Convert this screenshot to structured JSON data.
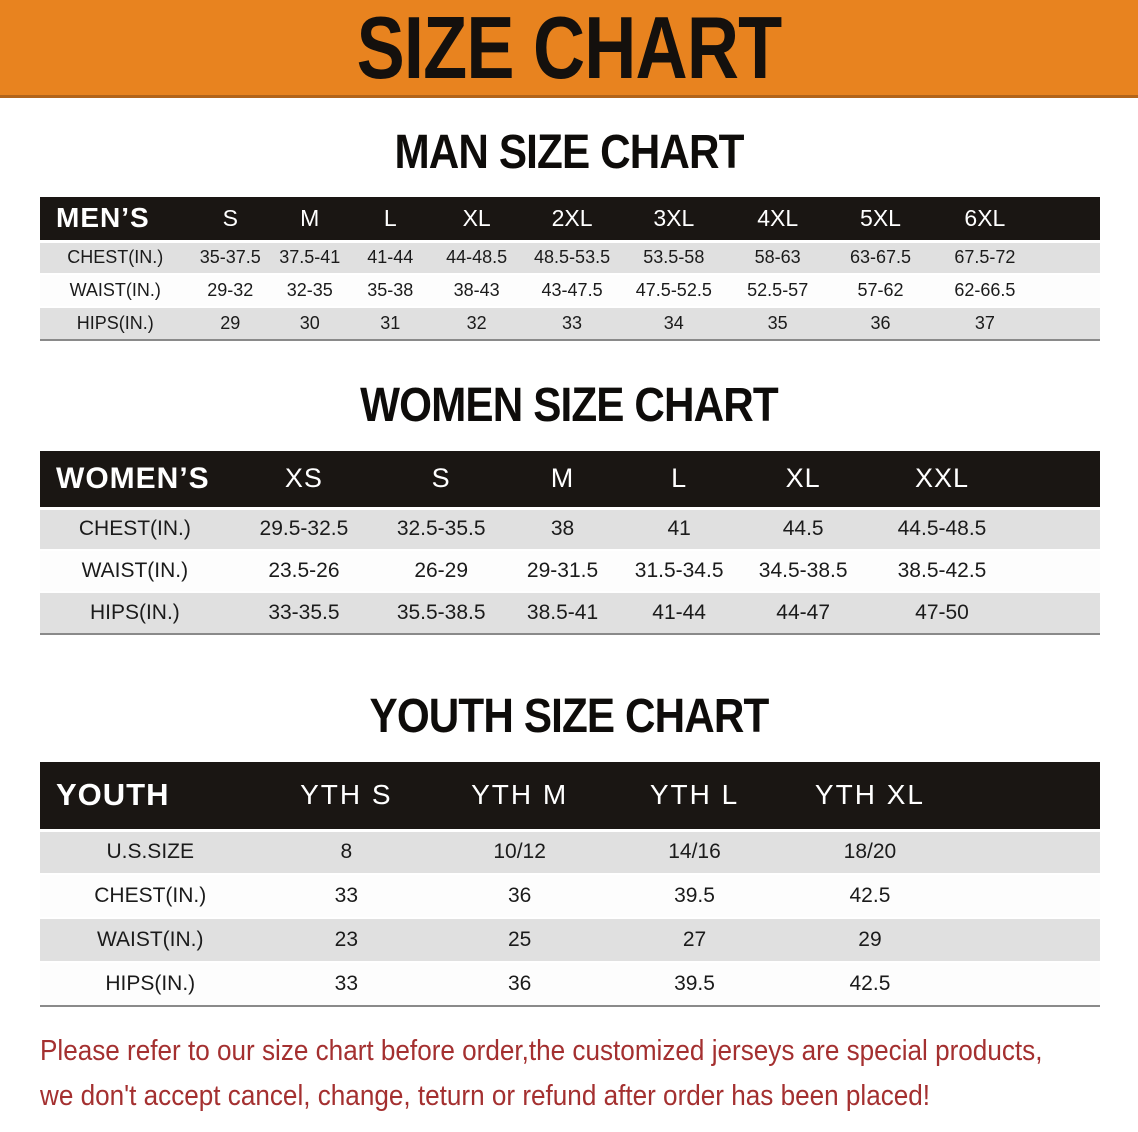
{
  "banner": {
    "title": "SIZE CHART"
  },
  "colors": {
    "banner_bg": "#e8831f",
    "banner_border": "#b2641a",
    "header_row_bg": "#1a1613",
    "stripe_gray": "#e0e0e0",
    "disclaimer_red": "#a43030"
  },
  "sections": [
    {
      "heading": "MAN SIZE CHART",
      "table": {
        "corner_label": "MEN’S",
        "columns": [
          "S",
          "M",
          "L",
          "XL",
          "2XL",
          "3XL",
          "4XL",
          "5XL",
          "6XL"
        ],
        "rows": [
          {
            "label": "CHEST(IN.)",
            "values": [
              "35-37.5",
              "37.5-41",
              "41-44",
              "44-48.5",
              "48.5-53.5",
              "53.5-58",
              "58-63",
              "63-67.5",
              "67.5-72"
            ]
          },
          {
            "label": "WAIST(IN.)",
            "values": [
              "29-32",
              "32-35",
              "35-38",
              "38-43",
              "43-47.5",
              "47.5-52.5",
              "52.5-57",
              "57-62",
              "62-66.5"
            ]
          },
          {
            "label": "HIPS(IN.)",
            "values": [
              "29",
              "30",
              "31",
              "32",
              "33",
              "34",
              "35",
              "36",
              "37"
            ]
          }
        ]
      }
    },
    {
      "heading": "WOMEN SIZE CHART",
      "table": {
        "corner_label": "WOMEN’S",
        "columns": [
          "XS",
          "S",
          "M",
          "L",
          "XL",
          "XXL"
        ],
        "rows": [
          {
            "label": "CHEST(IN.)",
            "values": [
              "29.5-32.5",
              "32.5-35.5",
              "38",
              "41",
              "44.5",
              "44.5-48.5"
            ]
          },
          {
            "label": "WAIST(IN.)",
            "values": [
              "23.5-26",
              "26-29",
              "29-31.5",
              "31.5-34.5",
              "34.5-38.5",
              "38.5-42.5"
            ]
          },
          {
            "label": "HIPS(IN.)",
            "values": [
              "33-35.5",
              "35.5-38.5",
              "38.5-41",
              "41-44",
              "44-47",
              "47-50"
            ]
          }
        ]
      }
    },
    {
      "heading": "YOUTH SIZE CHART",
      "table": {
        "corner_label": "YOUTH",
        "columns": [
          "YTH S",
          "YTH M",
          "YTH L",
          "YTH XL"
        ],
        "rows": [
          {
            "label": "U.S.SIZE",
            "values": [
              "8",
              "10/12",
              "14/16",
              "18/20"
            ]
          },
          {
            "label": "CHEST(IN.)",
            "values": [
              "33",
              "36",
              "39.5",
              "42.5"
            ]
          },
          {
            "label": "WAIST(IN.)",
            "values": [
              "23",
              "25",
              "27",
              "29"
            ]
          },
          {
            "label": "HIPS(IN.)",
            "values": [
              "33",
              "36",
              "39.5",
              "42.5"
            ]
          }
        ]
      }
    }
  ],
  "disclaimer": {
    "line1": "Please refer to our size chart before order,the customized jerseys are special products,",
    "line2": "we don't accept cancel, change, teturn or refund after order has been placed!"
  }
}
